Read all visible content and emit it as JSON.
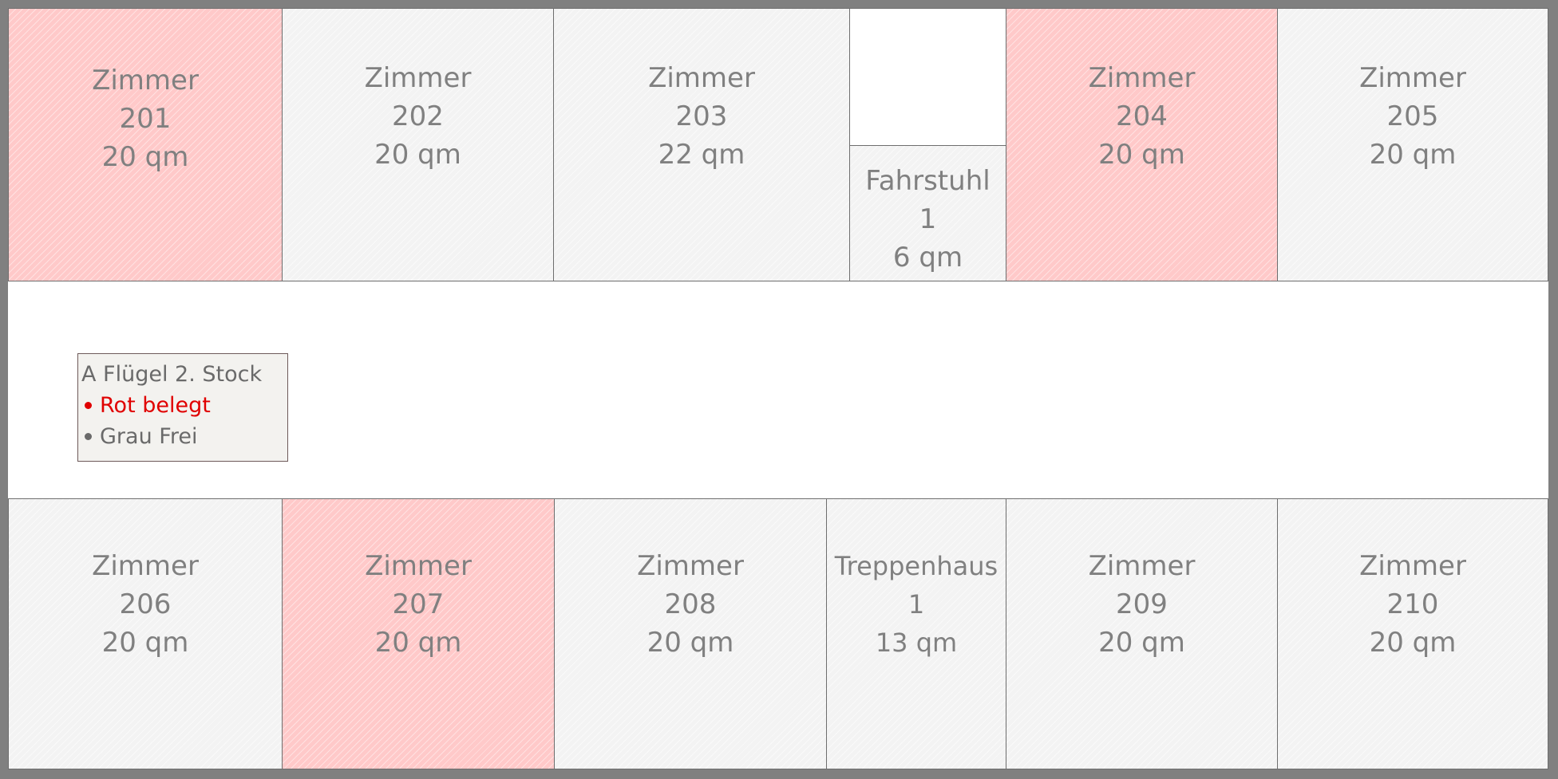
{
  "floorplan": {
    "colors": {
      "frame": "#808080",
      "occupied_fill": "#ffc9c9",
      "free_fill": "#f3f3f3",
      "text": "#808080"
    },
    "rooms": [
      {
        "id": "r201",
        "name": "Zimmer",
        "number": "201",
        "area": "20 qm",
        "status": "occupied"
      },
      {
        "id": "r202",
        "name": "Zimmer",
        "number": "202",
        "area": "20 qm",
        "status": "free"
      },
      {
        "id": "r203",
        "name": "Zimmer",
        "number": "203",
        "area": "22 qm",
        "status": "free"
      },
      {
        "id": "f1",
        "name": "Fahrstuhl",
        "number": "1",
        "area": "6 qm",
        "status": "free"
      },
      {
        "id": "r204",
        "name": "Zimmer",
        "number": "204",
        "area": "20 qm",
        "status": "occupied"
      },
      {
        "id": "r205",
        "name": "Zimmer",
        "number": "205",
        "area": "20 qm",
        "status": "free"
      },
      {
        "id": "r206",
        "name": "Zimmer",
        "number": "206",
        "area": "20 qm",
        "status": "free"
      },
      {
        "id": "r207",
        "name": "Zimmer",
        "number": "207",
        "area": "20 qm",
        "status": "occupied"
      },
      {
        "id": "r208",
        "name": "Zimmer",
        "number": "208",
        "area": "20 qm",
        "status": "free"
      },
      {
        "id": "t1",
        "name": "Treppenhaus",
        "number": "1",
        "area": "13 qm",
        "status": "free"
      },
      {
        "id": "r209",
        "name": "Zimmer",
        "number": "209",
        "area": "20 qm",
        "status": "free"
      },
      {
        "id": "r210",
        "name": "Zimmer",
        "number": "210",
        "area": "20 qm",
        "status": "free"
      }
    ],
    "legend": {
      "title": "A Flügel 2. Stock",
      "items": [
        {
          "label": "Rot belegt",
          "color": "#e00000"
        },
        {
          "label": "Grau Frei",
          "color": "#6a6a6a"
        }
      ]
    }
  }
}
